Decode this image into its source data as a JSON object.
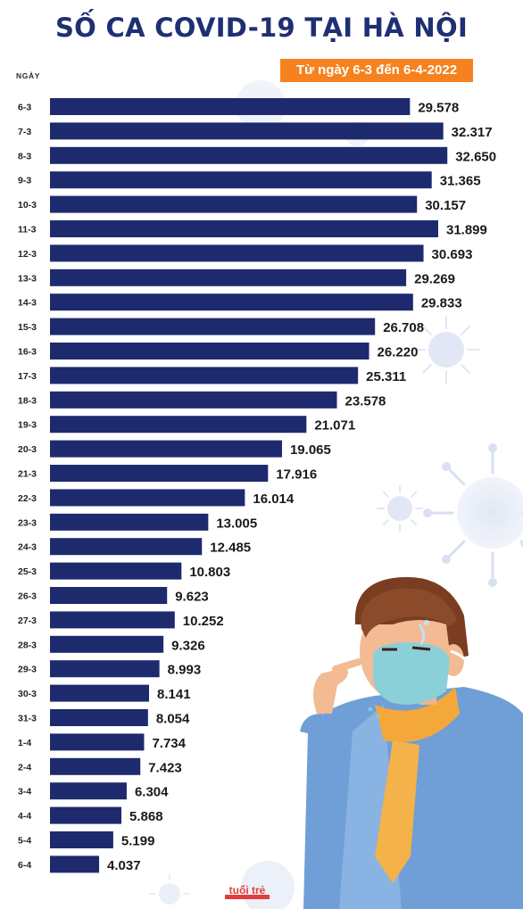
{
  "header": {
    "title": "SỐ CA COVID-19 TẠI HÀ NỘI",
    "subtitle": "Từ ngày 6-3 đến 6-4-2022",
    "logo_text": "tuổi trẻ"
  },
  "colors": {
    "bar": "#1e2a6e",
    "title": "#1f2f73",
    "subtitle_bg": "#f5821f",
    "value_text": "#1a1a1a"
  },
  "chart_data": {
    "type": "bar",
    "orientation": "horizontal",
    "title": "SỐ CA COVID-19 TẠI HÀ NỘI",
    "subtitle": "Từ ngày 6-3 đến 6-4-2022",
    "ylabel": "NGÀY",
    "xlabel": "",
    "xlim": [
      0,
      33000
    ],
    "grid": false,
    "categories": [
      "6-3",
      "7-3",
      "8-3",
      "9-3",
      "10-3",
      "11-3",
      "12-3",
      "13-3",
      "14-3",
      "15-3",
      "16-3",
      "17-3",
      "18-3",
      "19-3",
      "20-3",
      "21-3",
      "22-3",
      "23-3",
      "24-3",
      "25-3",
      "26-3",
      "27-3",
      "28-3",
      "29-3",
      "30-3",
      "31-3",
      "1-4",
      "2-4",
      "3-4",
      "4-4",
      "5-4",
      "6-4"
    ],
    "values": [
      29578,
      32317,
      32650,
      31365,
      30157,
      31899,
      30693,
      29269,
      29833,
      26708,
      26220,
      25311,
      23578,
      21071,
      19065,
      17916,
      16014,
      13005,
      12485,
      10803,
      9623,
      10252,
      9326,
      8993,
      8141,
      8054,
      7734,
      7423,
      6304,
      5868,
      5199,
      4037
    ],
    "value_labels": [
      "29.578",
      "32.317",
      "32.650",
      "31.365",
      "30.157",
      "31.899",
      "30.693",
      "29.269",
      "29.833",
      "26.708",
      "26.220",
      "25.311",
      "23.578",
      "21.071",
      "19.065",
      "17.916",
      "16.014",
      "13.005",
      "12.485",
      "10.803",
      "9.623",
      "10.252",
      "9.326",
      "8.993",
      "8.141",
      "8.054",
      "7.734",
      "7.423",
      "6.304",
      "5.868",
      "5.199",
      "4.037"
    ]
  }
}
